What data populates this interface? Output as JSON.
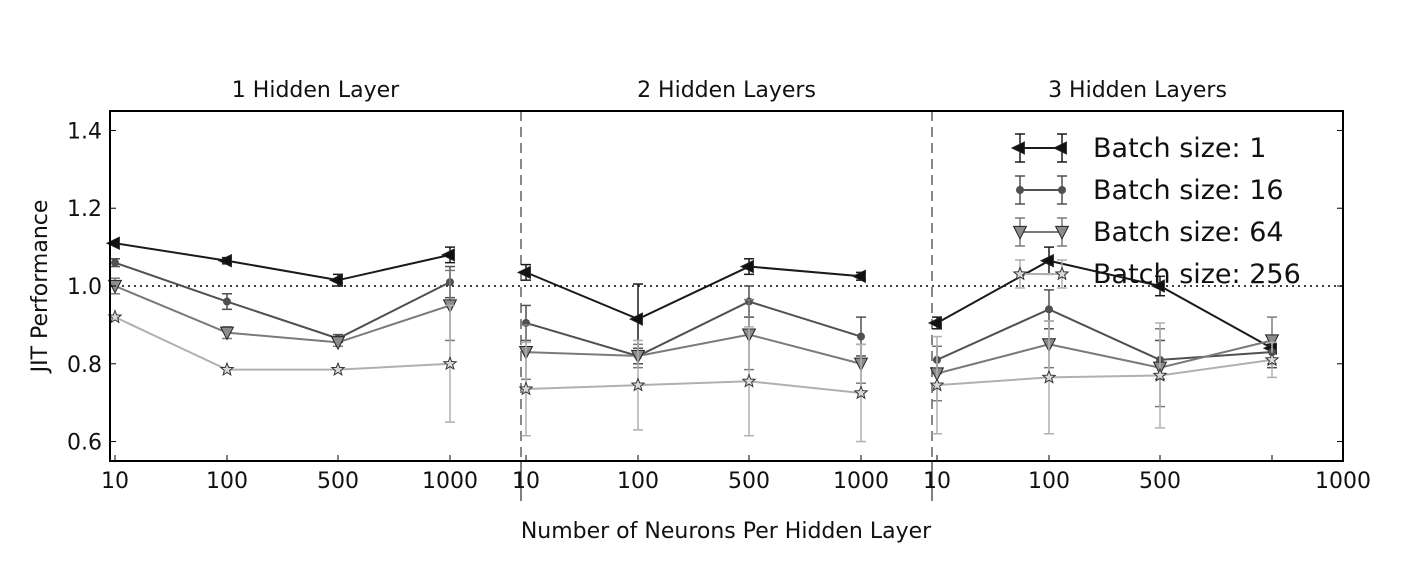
{
  "chart_data": {
    "type": "line",
    "ylabel": "JIT Performance",
    "xlabel": "Number of Neurons Per Hidden Layer",
    "ylim": [
      0.55,
      1.45
    ],
    "yticks": [
      0.6,
      0.8,
      1.0,
      1.2,
      1.4
    ],
    "ytick_labels": [
      "0.6",
      "0.8",
      "1.0",
      "1.2",
      "1.4"
    ],
    "reference_line": 1.0,
    "categories": [
      "10",
      "100",
      "500",
      "1000"
    ],
    "panels": [
      {
        "title": "1 Hidden Layer"
      },
      {
        "title": "2 Hidden Layers"
      },
      {
        "title": "3 Hidden Layers"
      }
    ],
    "legend_position": "top-right",
    "series": [
      {
        "name": "Batch size: 1",
        "marker": "triangle-left",
        "color": "#1a1a1a",
        "values": [
          [
            1.11,
            1.065,
            1.015,
            1.08
          ],
          [
            1.035,
            0.915,
            1.05,
            1.025
          ],
          [
            0.905,
            1.065,
            1.0,
            0.84
          ]
        ],
        "errors": [
          [
            0.0,
            0.008,
            0.015,
            0.02
          ],
          [
            0.02,
            0.09,
            0.02,
            0.01
          ],
          [
            0.015,
            0.035,
            0.025,
            0.01
          ]
        ]
      },
      {
        "name": "Batch size: 16",
        "marker": "circle",
        "color": "#505050",
        "values": [
          [
            1.06,
            0.96,
            0.865,
            1.01
          ],
          [
            0.905,
            0.82,
            0.96,
            0.87
          ],
          [
            0.81,
            0.94,
            0.81,
            0.83
          ]
        ],
        "errors": [
          [
            0.01,
            0.02,
            0.01,
            0.04
          ],
          [
            0.045,
            0.02,
            0.04,
            0.05
          ],
          [
            0.035,
            0.05,
            0.05,
            0.04
          ]
        ]
      },
      {
        "name": "Batch size: 64",
        "marker": "triangle-down",
        "color": "#7a7a7a",
        "values": [
          [
            1.0,
            0.88,
            0.855,
            0.95
          ],
          [
            0.83,
            0.82,
            0.875,
            0.8
          ],
          [
            0.775,
            0.85,
            0.79,
            0.86
          ]
        ],
        "errors": [
          [
            0.02,
            0.015,
            0.01,
            0.09
          ],
          [
            0.07,
            0.03,
            0.09,
            0.05
          ],
          [
            0.07,
            0.06,
            0.1,
            0.06
          ]
        ]
      },
      {
        "name": "Batch size: 256",
        "marker": "star",
        "color": "#b0b0b0",
        "values": [
          [
            0.92,
            0.785,
            0.785,
            0.8
          ],
          [
            0.735,
            0.745,
            0.755,
            0.725
          ],
          [
            0.745,
            0.765,
            0.77,
            0.81
          ]
        ],
        "errors": [
          [
            0.0,
            0.0,
            0.0,
            0.15
          ],
          [
            0.12,
            0.115,
            0.14,
            0.125
          ],
          [
            0.125,
            0.145,
            0.135,
            0.045
          ]
        ]
      }
    ]
  }
}
